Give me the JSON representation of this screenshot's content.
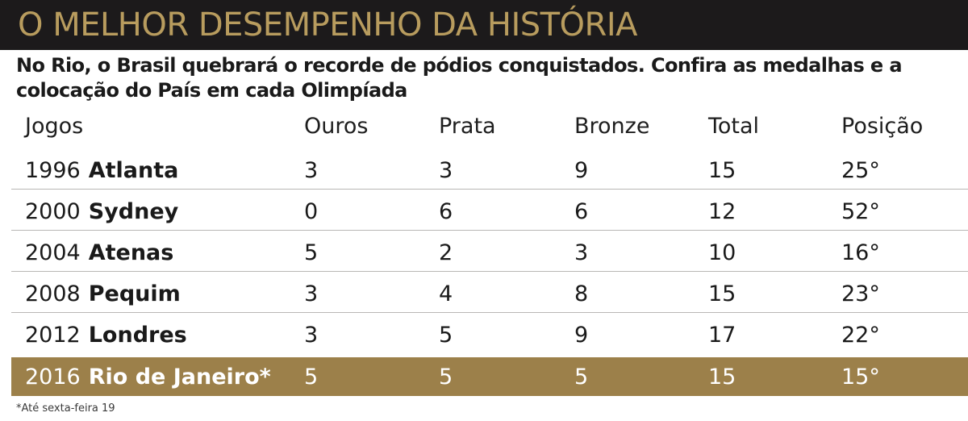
{
  "title": "O MELHOR DESEMPENHO DA HISTÓRIA",
  "subtitle": "No Rio, o Brasil quebrará o recorde de pódios conquistados. Confira as medalhas e a colocação do País em cada Olimpíada",
  "footnote": "*Até sexta-feira 19",
  "colors": {
    "title_bg": "#1c1a1b",
    "title_text": "#b89c5e",
    "highlight_row": "#9c804a",
    "row_separator": "#b9b7b5"
  },
  "chart_data": {
    "type": "table",
    "columns": [
      "Jogos",
      "Ouros",
      "Prata",
      "Bronze",
      "Total",
      "Posição"
    ],
    "rows": [
      {
        "year": "1996",
        "city": "Atlanta",
        "ouros": "3",
        "prata": "3",
        "bronze": "9",
        "total": "15",
        "posicao": "25°"
      },
      {
        "year": "2000",
        "city": "Sydney",
        "ouros": "0",
        "prata": "6",
        "bronze": "6",
        "total": "12",
        "posicao": "52°"
      },
      {
        "year": "2004",
        "city": "Atenas",
        "ouros": "5",
        "prata": "2",
        "bronze": "3",
        "total": "10",
        "posicao": "16°"
      },
      {
        "year": "2008",
        "city": "Pequim",
        "ouros": "3",
        "prata": "4",
        "bronze": "8",
        "total": "15",
        "posicao": "23°"
      },
      {
        "year": "2012",
        "city": "Londres",
        "ouros": "3",
        "prata": "5",
        "bronze": "9",
        "total": "17",
        "posicao": "22°"
      },
      {
        "year": "2016",
        "city": "Rio de Janeiro*",
        "ouros": "5",
        "prata": "5",
        "bronze": "5",
        "total": "15",
        "posicao": "15°",
        "highlight": true
      }
    ]
  }
}
